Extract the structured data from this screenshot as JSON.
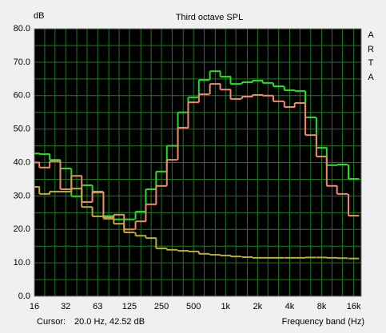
{
  "chart_data": {
    "type": "step",
    "title": "Third octave SPL",
    "y_label": "dB",
    "x_label": "Frequency band (Hz)",
    "watermark": "ARTA",
    "cursor_label": "Cursor:",
    "cursor_value": "20.0 Hz, 42.52 dB",
    "x": [
      16,
      20,
      25,
      31.5,
      40,
      50,
      63,
      80,
      100,
      125,
      160,
      200,
      250,
      315,
      400,
      500,
      630,
      800,
      1000,
      1250,
      1600,
      2000,
      2500,
      3150,
      4000,
      5000,
      6300,
      8000,
      10000,
      12500,
      16000
    ],
    "x_log": true,
    "xlim": [
      16,
      18800
    ],
    "xticks": [
      16,
      {
        "value": 31.5,
        "label": "32"
      },
      63,
      125,
      250,
      500,
      {
        "value": 1000,
        "label": "1k"
      },
      {
        "value": 2000,
        "label": "2k"
      },
      {
        "value": 4000,
        "label": "4k"
      },
      {
        "value": 8000,
        "label": "8k"
      },
      {
        "value": 16000,
        "label": "16k"
      }
    ],
    "ylim": [
      0,
      80
    ],
    "yticks": [
      {
        "value": 0,
        "label": "0.0"
      },
      {
        "value": 10,
        "label": "10.0"
      },
      {
        "value": 20,
        "label": "20.0"
      },
      {
        "value": 30,
        "label": "30.0"
      },
      {
        "value": 40,
        "label": "40.0"
      },
      {
        "value": 50,
        "label": "50.0"
      },
      {
        "value": 60,
        "label": "60.0"
      },
      {
        "value": 70,
        "label": "70.0"
      },
      {
        "value": 80,
        "label": "80.0"
      }
    ],
    "grid": true,
    "series": [
      {
        "color": "#22e022",
        "values": [
          42.7,
          42.5,
          40.8,
          38.2,
          29.9,
          33.2,
          31,
          24,
          23,
          23,
          25.3,
          32,
          37.3,
          45,
          55,
          59.5,
          64.7,
          67.3,
          65.7,
          63.5,
          64,
          64.5,
          63.8,
          62.8,
          61.6,
          61.4,
          53.5,
          44.4,
          39.2,
          39.4,
          35.1
        ]
      },
      {
        "color": "#f08a6a",
        "values": [
          40,
          38.5,
          40.4,
          32,
          36,
          28.2,
          31.3,
          23.6,
          24.4,
          20,
          22.4,
          27.5,
          33,
          40.8,
          50.4,
          58,
          60.4,
          63.5,
          61.8,
          59,
          59.7,
          60.2,
          60,
          58.3,
          56.6,
          57.8,
          48.2,
          41.8,
          33,
          30.6,
          24.1
        ]
      },
      {
        "color": "#b8b030",
        "values": [
          32.7,
          30.6,
          31.3,
          31.3,
          32.2,
          26.7,
          23.9,
          23.2,
          21.7,
          19.1,
          18.1,
          17.4,
          14.3,
          13.9,
          13.6,
          13.4,
          12.7,
          12.4,
          12.2,
          11.9,
          11.7,
          11.5,
          11.5,
          11.5,
          11.5,
          11.5,
          11.6,
          11.6,
          11.5,
          11.4,
          11.3
        ]
      }
    ]
  }
}
